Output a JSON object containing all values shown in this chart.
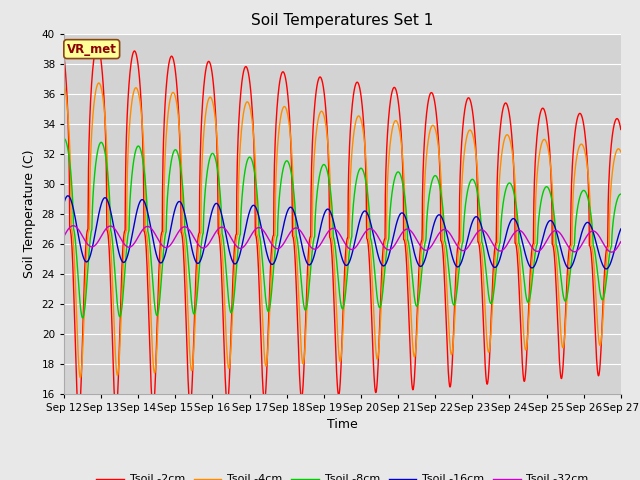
{
  "title": "Soil Temperatures Set 1",
  "xlabel": "Time",
  "ylabel": "Soil Temperature (C)",
  "ylim": [
    16,
    40
  ],
  "yticks": [
    16,
    18,
    20,
    22,
    24,
    26,
    28,
    30,
    32,
    34,
    36,
    38,
    40
  ],
  "x_labels": [
    "Sep 12",
    "Sep 13",
    "Sep 14",
    "Sep 15",
    "Sep 16",
    "Sep 17",
    "Sep 18",
    "Sep 19",
    "Sep 20",
    "Sep 21",
    "Sep 22",
    "Sep 23",
    "Sep 24",
    "Sep 25",
    "Sep 26",
    "Sep 27"
  ],
  "annotation_text": "VR_met",
  "annotation_bg": "#ffff99",
  "annotation_border": "#8b4513",
  "annotation_text_color": "#8b0000",
  "colors": {
    "Tsoil_2cm": "#ff0000",
    "Tsoil_4cm": "#ff8c00",
    "Tsoil_8cm": "#00cc00",
    "Tsoil_16cm": "#0000cc",
    "Tsoil_32cm": "#cc00cc"
  },
  "legend_labels": [
    "Tsoil -2cm",
    "Tsoil -4cm",
    "Tsoil -8cm",
    "Tsoil -16cm",
    "Tsoil -32cm"
  ],
  "bg_color": "#e8e8e8",
  "plot_bg_color": "#d3d3d3",
  "grid_color": "#ffffff",
  "n_points_per_day": 144
}
